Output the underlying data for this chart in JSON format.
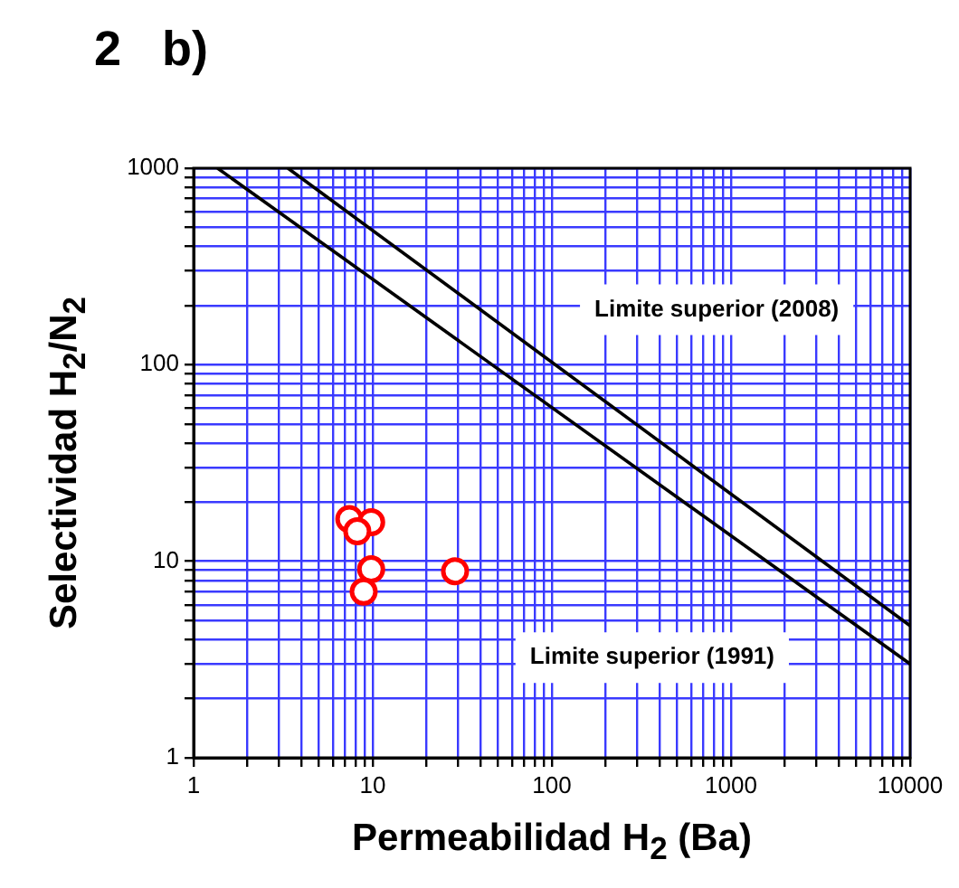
{
  "chart_data": {
    "type": "scatter",
    "title": "2   b)",
    "xlabel": "Permeabilidad H$_{2}$ (Ba)",
    "ylabel": "Selectividad H$_{2}$/N$_{2}$",
    "log": "xy",
    "grid": true,
    "legend": false,
    "marker": "circle",
    "xlim": [
      1,
      10000
    ],
    "ylim": [
      1,
      1000
    ],
    "xticks": [
      1,
      {
        "value": 2,
        "label": null
      },
      {
        "value": 3,
        "label": null
      },
      {
        "value": 4,
        "label": null
      },
      {
        "value": 5,
        "label": null
      },
      {
        "value": 6,
        "label": null
      },
      {
        "value": 7,
        "label": null
      },
      {
        "value": 8,
        "label": null
      },
      {
        "value": 9,
        "label": null
      },
      10,
      {
        "value": 20,
        "label": null
      },
      {
        "value": 30,
        "label": null
      },
      {
        "value": 40,
        "label": null
      },
      {
        "value": 50,
        "label": null
      },
      {
        "value": 60,
        "label": null
      },
      {
        "value": 70,
        "label": null
      },
      {
        "value": 80,
        "label": null
      },
      {
        "value": 90,
        "label": null
      },
      100,
      {
        "value": 200,
        "label": null
      },
      {
        "value": 300,
        "label": null
      },
      {
        "value": 400,
        "label": null
      },
      {
        "value": 500,
        "label": null
      },
      {
        "value": 600,
        "label": null
      },
      {
        "value": 700,
        "label": null
      },
      {
        "value": 800,
        "label": null
      },
      {
        "value": 900,
        "label": null
      },
      1000,
      {
        "value": 2000,
        "label": null
      },
      {
        "value": 3000,
        "label": null
      },
      {
        "value": 4000,
        "label": null
      },
      {
        "value": 5000,
        "label": null
      },
      {
        "value": 6000,
        "label": null
      },
      {
        "value": 7000,
        "label": null
      },
      {
        "value": 8000,
        "label": null
      },
      {
        "value": 9000,
        "label": null
      },
      10000
    ],
    "yticks": [
      1,
      {
        "value": 2,
        "label": null
      },
      {
        "value": 3,
        "label": null
      },
      {
        "value": 4,
        "label": null
      },
      {
        "value": 5,
        "label": null
      },
      {
        "value": 6,
        "label": null
      },
      {
        "value": 7,
        "label": null
      },
      {
        "value": 8,
        "label": null
      },
      {
        "value": 9,
        "label": null
      },
      10,
      {
        "value": 20,
        "label": null
      },
      {
        "value": 30,
        "label": null
      },
      {
        "value": 40,
        "label": null
      },
      {
        "value": 50,
        "label": null
      },
      {
        "value": 60,
        "label": null
      },
      {
        "value": 70,
        "label": null
      },
      {
        "value": 80,
        "label": null
      },
      {
        "value": 90,
        "label": null
      },
      100,
      {
        "value": 200,
        "label": null
      },
      {
        "value": 300,
        "label": null
      },
      {
        "value": 400,
        "label": null
      },
      {
        "value": 500,
        "label": null
      },
      {
        "value": 600,
        "label": null
      },
      {
        "value": 700,
        "label": null
      },
      {
        "value": 800,
        "label": null
      },
      {
        "value": 900,
        "label": null
      },
      1000
    ],
    "series": [
      {
        "type": "scatter",
        "color": "#ff0000",
        "x": [
          7.4,
          9.8,
          8.2,
          9.8,
          8.9,
          28.8
        ],
        "values": [
          16.4,
          15.8,
          14.2,
          9.1,
          7.0,
          8.9
        ]
      },
      {
        "type": "line",
        "color": "#000000",
        "marker": "none",
        "x": [
          1.36,
          10000
        ],
        "values": [
          1000,
          3.0
        ]
      },
      {
        "type": "line",
        "color": "#000000",
        "marker": "none",
        "x": [
          3.36,
          10000
        ],
        "values": [
          1000,
          4.7
        ]
      }
    ],
    "annotations": [
      "Limite superior (2008)",
      "Limite superior (1991)"
    ]
  }
}
